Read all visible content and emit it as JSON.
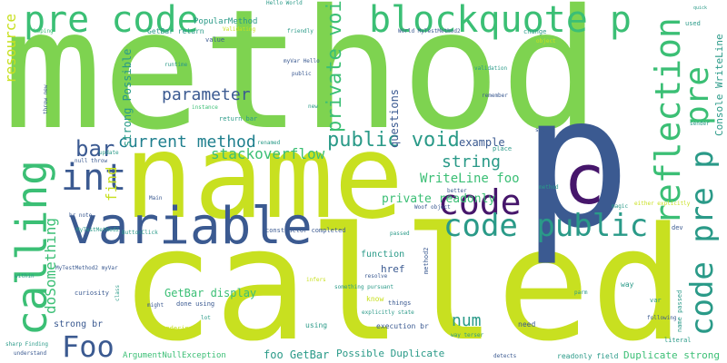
{
  "colors": {
    "background": "#ffffff",
    "green": "#7ed350",
    "lime": "#c8e020",
    "teal": "#2a9a88",
    "blue": "#3b5a91",
    "purple": "#46166b",
    "cyan": "#1f7f8e",
    "aqua": "#3bbf75"
  },
  "words": [
    {
      "id": "w-method",
      "text": "method",
      "color": "green"
    },
    {
      "id": "w-name",
      "text": "name",
      "color": "lime"
    },
    {
      "id": "w-called",
      "text": "called",
      "color": "lime"
    },
    {
      "id": "w-p",
      "text": "p",
      "color": "blue"
    },
    {
      "id": "w-c",
      "text": "c",
      "color": "purple"
    },
    {
      "id": "w-pre-code",
      "text": "pre code",
      "color": "aqua"
    },
    {
      "id": "w-blockquote-p",
      "text": "blockquote p",
      "color": "aqua"
    },
    {
      "id": "w-variable",
      "text": "variable",
      "color": "blue"
    },
    {
      "id": "w-calling",
      "text": "calling",
      "color": "aqua"
    },
    {
      "id": "w-code",
      "text": "code",
      "color": "purple"
    },
    {
      "id": "w-code-public",
      "text": "code public",
      "color": "teal"
    },
    {
      "id": "w-code-pre-p",
      "text": "code pre p",
      "color": "teal"
    },
    {
      "id": "w-reflection",
      "text": "reflection",
      "color": "aqua"
    },
    {
      "id": "w-pre",
      "text": "pre",
      "color": "aqua"
    },
    {
      "id": "w-int",
      "text": "int",
      "color": "blue"
    },
    {
      "id": "w-foo",
      "text": "Foo",
      "color": "blue"
    },
    {
      "id": "w-bar",
      "text": "bar",
      "color": "blue"
    },
    {
      "id": "w-public-void",
      "text": "public void",
      "color": "teal"
    },
    {
      "id": "w-private-void",
      "text": "private void",
      "color": "aqua"
    },
    {
      "id": "w-current-method",
      "text": "current method",
      "color": "cyan"
    },
    {
      "id": "w-parameter",
      "text": "parameter",
      "color": "blue"
    },
    {
      "id": "w-resource",
      "text": "resource",
      "color": "lime"
    },
    {
      "id": "w-stackoverflow",
      "text": "stackoverflow",
      "color": "aqua"
    },
    {
      "id": "w-string",
      "text": "string",
      "color": "teal"
    },
    {
      "id": "w-num",
      "text": "num",
      "color": "teal"
    },
    {
      "id": "w-find",
      "text": "find",
      "color": "lime"
    },
    {
      "id": "w-dosomething",
      "text": "doSomething",
      "color": "aqua"
    },
    {
      "id": "w-writeline-foo",
      "text": "WriteLine foo",
      "color": "aqua"
    },
    {
      "id": "w-private-readonly",
      "text": "private readonly",
      "color": "aqua"
    },
    {
      "id": "w-console-writeline",
      "text": "Console WriteLine",
      "color": "teal"
    },
    {
      "id": "w-strong-possible",
      "text": "strong Possible",
      "color": "teal"
    },
    {
      "id": "w-questions",
      "text": "questions",
      "color": "blue"
    },
    {
      "id": "w-example",
      "text": "example",
      "color": "blue"
    },
    {
      "id": "w-getbar-display",
      "text": "GetBar display",
      "color": "aqua"
    },
    {
      "id": "w-foo-getbar",
      "text": "foo GetBar",
      "color": "teal"
    },
    {
      "id": "w-possible-duplicate",
      "text": "Possible Duplicate",
      "color": "teal"
    },
    {
      "id": "w-duplicate-strong",
      "text": "Duplicate strong",
      "color": "aqua"
    },
    {
      "id": "w-argumentnullexception",
      "text": "ArgumentNullException",
      "color": "aqua"
    },
    {
      "id": "w-href",
      "text": "href",
      "color": "blue"
    },
    {
      "id": "w-function",
      "text": "function",
      "color": "teal"
    },
    {
      "id": "w-strong-br",
      "text": "strong br",
      "color": "blue"
    },
    {
      "id": "w-popularmethod",
      "text": "PopularMethod",
      "color": "teal"
    },
    {
      "id": "w-getbar-return",
      "text": "GetBar return",
      "color": "teal"
    },
    {
      "id": "w-hello-world",
      "text": "Hello World",
      "color": "teal"
    },
    {
      "id": "w-myvar-hello",
      "text": "myVar Hello",
      "color": "blue"
    },
    {
      "id": "w-world-mytestmethod2",
      "text": "World MyTestMethod2",
      "color": "blue"
    },
    {
      "id": "w-validation",
      "text": "validation",
      "color": "teal"
    },
    {
      "id": "w-remember",
      "text": "remember",
      "color": "blue"
    },
    {
      "id": "w-change",
      "text": "change",
      "color": "teal"
    },
    {
      "id": "w-object",
      "text": "object",
      "color": "lime"
    },
    {
      "id": "w-used",
      "text": "used",
      "color": "teal"
    },
    {
      "id": "w-runtime",
      "text": "runtime",
      "color": "teal"
    },
    {
      "id": "w-public",
      "text": "public",
      "color": "blue"
    },
    {
      "id": "w-new",
      "text": "new",
      "color": "teal"
    },
    {
      "id": "w-instance",
      "text": "instance",
      "color": "aqua"
    },
    {
      "id": "w-return-bar",
      "text": "return bar",
      "color": "teal"
    },
    {
      "id": "w-friendly",
      "text": "friendly",
      "color": "teal"
    },
    {
      "id": "w-validating",
      "text": "Validating",
      "color": "lime"
    },
    {
      "id": "w-value",
      "text": "value",
      "color": "blue"
    },
    {
      "id": "w-hoping",
      "text": "hoping",
      "color": "aqua"
    },
    {
      "id": "w-throw-new",
      "text": "throw new",
      "color": "blue"
    },
    {
      "id": "w-renamed",
      "text": "renamed",
      "color": "teal"
    },
    {
      "id": "w-null-throw",
      "text": "null throw",
      "color": "blue"
    },
    {
      "id": "w-update",
      "text": "update",
      "color": "teal"
    },
    {
      "id": "w-br-note",
      "text": "br note",
      "color": "blue"
    },
    {
      "id": "w-main",
      "text": "Main",
      "color": "blue"
    },
    {
      "id": "w-mytestmethod2",
      "text": "MyTestMethod2",
      "color": "teal"
    },
    {
      "id": "w-buttonclick",
      "text": "ButtonClick",
      "color": "teal"
    },
    {
      "id": "w-mytestmethod2-myvar",
      "text": "MyTestMethod2 myVar",
      "color": "blue"
    },
    {
      "id": "w-curiosity",
      "text": "curiosity",
      "color": "blue"
    },
    {
      "id": "w-class",
      "text": "class",
      "color": "teal"
    },
    {
      "id": "w-within",
      "text": "within",
      "color": "teal"
    },
    {
      "id": "w-might",
      "text": "might",
      "color": "blue"
    },
    {
      "id": "w-wondering",
      "text": "wondering",
      "color": "lime"
    },
    {
      "id": "w-done-using",
      "text": "done using",
      "color": "blue"
    },
    {
      "id": "w-lot",
      "text": "lot",
      "color": "teal"
    },
    {
      "id": "w-sharp-finding",
      "text": "sharp Finding",
      "color": "teal"
    },
    {
      "id": "w-understand",
      "text": "understand",
      "color": "blue"
    },
    {
      "id": "w-constructor-completed",
      "text": "constructor completed",
      "color": "blue"
    },
    {
      "id": "w-infers",
      "text": "infers",
      "color": "lime"
    },
    {
      "id": "w-something-pursuant",
      "text": "something pursuant",
      "color": "teal"
    },
    {
      "id": "w-explicitly-state",
      "text": "explicitly state",
      "color": "teal"
    },
    {
      "id": "w-know",
      "text": "know",
      "color": "lime"
    },
    {
      "id": "w-things",
      "text": "things",
      "color": "blue"
    },
    {
      "id": "w-execution-br",
      "text": "execution br",
      "color": "blue"
    },
    {
      "id": "w-method2",
      "text": "method2",
      "color": "blue"
    },
    {
      "id": "w-using",
      "text": "using",
      "color": "teal"
    },
    {
      "id": "w-need",
      "text": "need",
      "color": "blue"
    },
    {
      "id": "w-way-terser",
      "text": "way terser",
      "color": "teal"
    },
    {
      "id": "w-detects",
      "text": "detects",
      "color": "blue"
    },
    {
      "id": "w-readonly-field",
      "text": "readonly field",
      "color": "teal"
    },
    {
      "id": "w-resolve",
      "text": "resolve",
      "color": "blue"
    },
    {
      "id": "w-passed",
      "text": "passed",
      "color": "teal"
    },
    {
      "id": "w-better",
      "text": "better",
      "color": "blue"
    },
    {
      "id": "w-method-label",
      "text": "method",
      "color": "teal"
    },
    {
      "id": "w-woof-object",
      "text": "Woof object",
      "color": "blue"
    },
    {
      "id": "w-place",
      "text": "place",
      "color": "teal"
    },
    {
      "id": "w-see",
      "text": "see",
      "color": "blue"
    },
    {
      "id": "w-way",
      "text": "way",
      "color": "teal"
    },
    {
      "id": "w-magic",
      "text": "magic",
      "color": "teal"
    },
    {
      "id": "w-either-explicitly",
      "text": "either explicitly",
      "color": "lime"
    },
    {
      "id": "w-dev",
      "text": "dev",
      "color": "blue"
    },
    {
      "id": "w-parm",
      "text": "parm",
      "color": "teal"
    },
    {
      "id": "w-var",
      "text": "var",
      "color": "teal"
    },
    {
      "id": "w-name-passed",
      "text": "name passed",
      "color": "teal"
    },
    {
      "id": "w-following",
      "text": "following",
      "color": "blue"
    },
    {
      "id": "w-literal",
      "text": "literal",
      "color": "teal"
    },
    {
      "id": "w-sender",
      "text": "sender",
      "color": "teal"
    },
    {
      "id": "w-quick",
      "text": "quick",
      "color": "teal"
    }
  ]
}
